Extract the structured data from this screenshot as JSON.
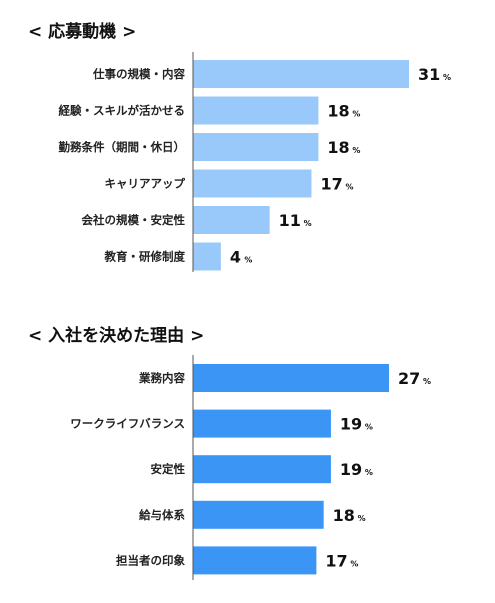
{
  "chart_data": [
    {
      "type": "bar",
      "orientation": "horizontal",
      "title": "< 応募動機 >",
      "categories": [
        "仕事の規模・内容",
        "経験・スキルが活かせる",
        "勤務条件（期間・休日）",
        "キャリアアップ",
        "会社の規模・安定性",
        "教育・研修制度"
      ],
      "values": [
        31,
        18,
        18,
        17,
        11,
        4
      ],
      "unit": "%",
      "xlim": [
        0,
        31
      ],
      "color": "#99c9fa"
    },
    {
      "type": "bar",
      "orientation": "horizontal",
      "title": "< 入社を決めた理由 >",
      "categories": [
        "業務内容",
        "ワークライフバランス",
        "安定性",
        "給与体系",
        "担当者の印象"
      ],
      "values": [
        27,
        19,
        19,
        18,
        17
      ],
      "unit": "%",
      "xlim": [
        0,
        27
      ],
      "color": "#3a95f5"
    }
  ]
}
